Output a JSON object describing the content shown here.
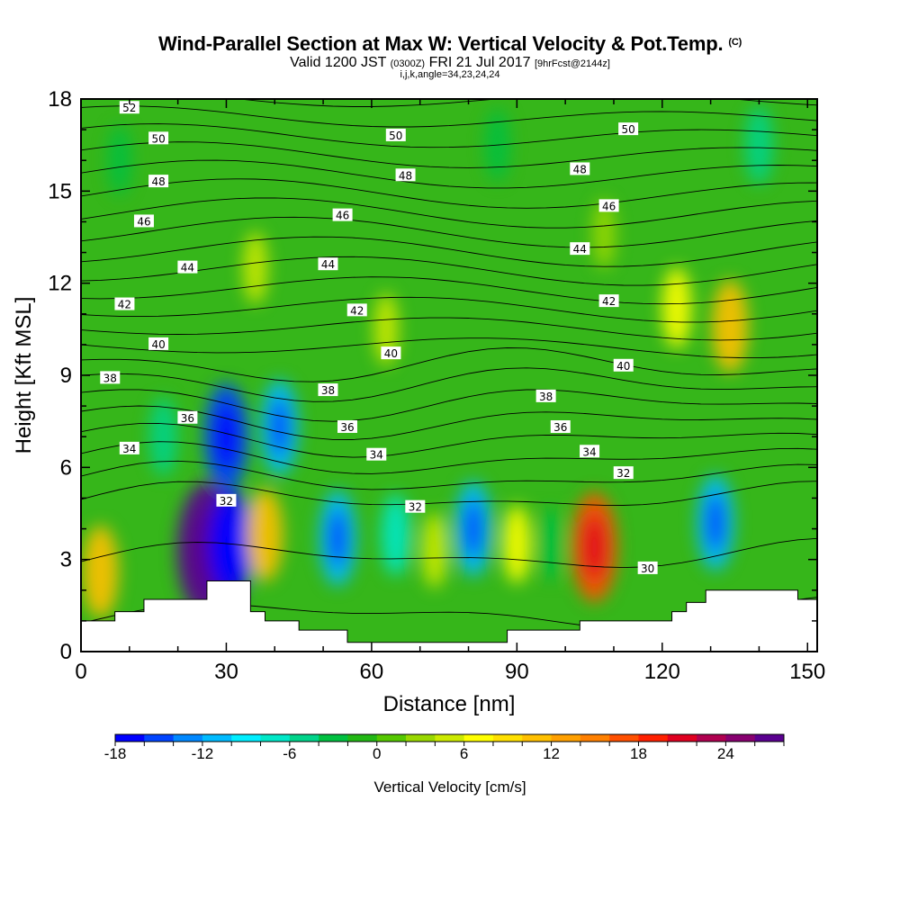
{
  "header": {
    "title": "Wind-Parallel Section at Max W: Vertical Velocity & Pot.Temp.",
    "copyright": "(C)",
    "subtitle_main": "Valid 1200 JST",
    "subtitle_z": "(0300Z)",
    "subtitle_date": "FRI 21 Jul 2017",
    "subtitle_fcst": "[9hrFcst@2144z]",
    "subtitle_indices": "i,j,k,angle=34,23,24,24"
  },
  "chart_data": {
    "type": "heatmap",
    "xlabel": "Distance [nm]",
    "ylabel": "Height [Kft MSL]",
    "xlim": [
      0,
      152
    ],
    "ylim": [
      0,
      18
    ],
    "x_ticks": [
      0,
      30,
      60,
      90,
      120,
      150
    ],
    "y_ticks": [
      0,
      3,
      6,
      9,
      12,
      15,
      18
    ],
    "colorbar": {
      "label": "Vertical Velocity [cm/s]",
      "range": [
        -18,
        28
      ],
      "ticks": [
        -18,
        -12,
        -6,
        0,
        6,
        12,
        18,
        24
      ],
      "colors": [
        "#0000ff",
        "#0044ff",
        "#0088ff",
        "#00bbff",
        "#00eeff",
        "#00e8c8",
        "#00d48a",
        "#00c040",
        "#22b814",
        "#55c800",
        "#99d800",
        "#ccea00",
        "#ffff00",
        "#ffe000",
        "#ffc000",
        "#ffa000",
        "#ff8000",
        "#ff5000",
        "#ff2000",
        "#e00020",
        "#b00050",
        "#880070",
        "#5a0090"
      ]
    },
    "velocity_features": [
      {
        "x": 4,
        "y": 2.6,
        "value": 11
      },
      {
        "x": 26,
        "y": 3.3,
        "value": 26
      },
      {
        "x": 31,
        "y": 3.5,
        "value": -17
      },
      {
        "x": 38,
        "y": 3.8,
        "value": 11
      },
      {
        "x": 30,
        "y": 7.0,
        "value": -16
      },
      {
        "x": 41,
        "y": 7.3,
        "value": -12
      },
      {
        "x": 17,
        "y": 7.0,
        "value": -6
      },
      {
        "x": 53,
        "y": 3.7,
        "value": -12
      },
      {
        "x": 65,
        "y": 3.8,
        "value": -7
      },
      {
        "x": 73,
        "y": 3.3,
        "value": 5
      },
      {
        "x": 81,
        "y": 4.0,
        "value": -12
      },
      {
        "x": 90,
        "y": 3.5,
        "value": 6
      },
      {
        "x": 97,
        "y": 3.5,
        "value": -4
      },
      {
        "x": 106,
        "y": 3.4,
        "value": 17
      },
      {
        "x": 131,
        "y": 4.2,
        "value": -12
      },
      {
        "x": 134,
        "y": 10.6,
        "value": 11
      },
      {
        "x": 123,
        "y": 11.2,
        "value": 7
      },
      {
        "x": 140,
        "y": 16.5,
        "value": -6
      },
      {
        "x": 108,
        "y": 13.6,
        "value": 3
      },
      {
        "x": 86,
        "y": 16.5,
        "value": -4
      },
      {
        "x": 63,
        "y": 10.5,
        "value": 4
      },
      {
        "x": 36,
        "y": 12.5,
        "value": 4
      },
      {
        "x": 8,
        "y": 16.0,
        "value": -3
      }
    ],
    "isentrope_labels": [
      {
        "x": 10,
        "y": 17.7,
        "text": "52"
      },
      {
        "x": 16,
        "y": 16.7,
        "text": "50"
      },
      {
        "x": 65,
        "y": 16.8,
        "text": "50"
      },
      {
        "x": 113,
        "y": 17.0,
        "text": "50"
      },
      {
        "x": 16,
        "y": 15.3,
        "text": "48"
      },
      {
        "x": 67,
        "y": 15.5,
        "text": "48"
      },
      {
        "x": 103,
        "y": 15.7,
        "text": "48"
      },
      {
        "x": 13,
        "y": 14.0,
        "text": "46"
      },
      {
        "x": 54,
        "y": 14.2,
        "text": "46"
      },
      {
        "x": 109,
        "y": 14.5,
        "text": "46"
      },
      {
        "x": 22,
        "y": 12.5,
        "text": "44"
      },
      {
        "x": 51,
        "y": 12.6,
        "text": "44"
      },
      {
        "x": 103,
        "y": 13.1,
        "text": "44"
      },
      {
        "x": 9,
        "y": 11.3,
        "text": "42"
      },
      {
        "x": 57,
        "y": 11.1,
        "text": "42"
      },
      {
        "x": 109,
        "y": 11.4,
        "text": "42"
      },
      {
        "x": 16,
        "y": 10.0,
        "text": "40"
      },
      {
        "x": 64,
        "y": 9.7,
        "text": "40"
      },
      {
        "x": 112,
        "y": 9.3,
        "text": "40"
      },
      {
        "x": 6,
        "y": 8.9,
        "text": "38"
      },
      {
        "x": 51,
        "y": 8.5,
        "text": "38"
      },
      {
        "x": 96,
        "y": 8.3,
        "text": "38"
      },
      {
        "x": 22,
        "y": 7.6,
        "text": "36"
      },
      {
        "x": 55,
        "y": 7.3,
        "text": "36"
      },
      {
        "x": 99,
        "y": 7.3,
        "text": "36"
      },
      {
        "x": 10,
        "y": 6.6,
        "text": "34"
      },
      {
        "x": 61,
        "y": 6.4,
        "text": "34"
      },
      {
        "x": 105,
        "y": 6.5,
        "text": "34"
      },
      {
        "x": 30,
        "y": 4.9,
        "text": "32"
      },
      {
        "x": 69,
        "y": 4.7,
        "text": "32"
      },
      {
        "x": 112,
        "y": 5.8,
        "text": "32"
      },
      {
        "x": 117,
        "y": 2.7,
        "text": "30"
      }
    ],
    "terrain": [
      [
        0,
        1.0
      ],
      [
        7,
        1.0
      ],
      [
        7,
        1.3
      ],
      [
        13,
        1.3
      ],
      [
        13,
        1.7
      ],
      [
        26,
        1.7
      ],
      [
        26,
        2.3
      ],
      [
        35,
        2.3
      ],
      [
        35,
        1.3
      ],
      [
        38,
        1.3
      ],
      [
        38,
        1.0
      ],
      [
        45,
        1.0
      ],
      [
        45,
        0.7
      ],
      [
        55,
        0.7
      ],
      [
        55,
        0.3
      ],
      [
        88,
        0.3
      ],
      [
        88,
        0.7
      ],
      [
        103,
        0.7
      ],
      [
        103,
        1.0
      ],
      [
        122,
        1.0
      ],
      [
        122,
        1.3
      ],
      [
        125,
        1.3
      ],
      [
        125,
        1.6
      ],
      [
        129,
        1.6
      ],
      [
        129,
        2.0
      ],
      [
        148,
        2.0
      ],
      [
        148,
        1.7
      ],
      [
        152,
        1.7
      ],
      [
        152,
        0
      ]
    ]
  }
}
